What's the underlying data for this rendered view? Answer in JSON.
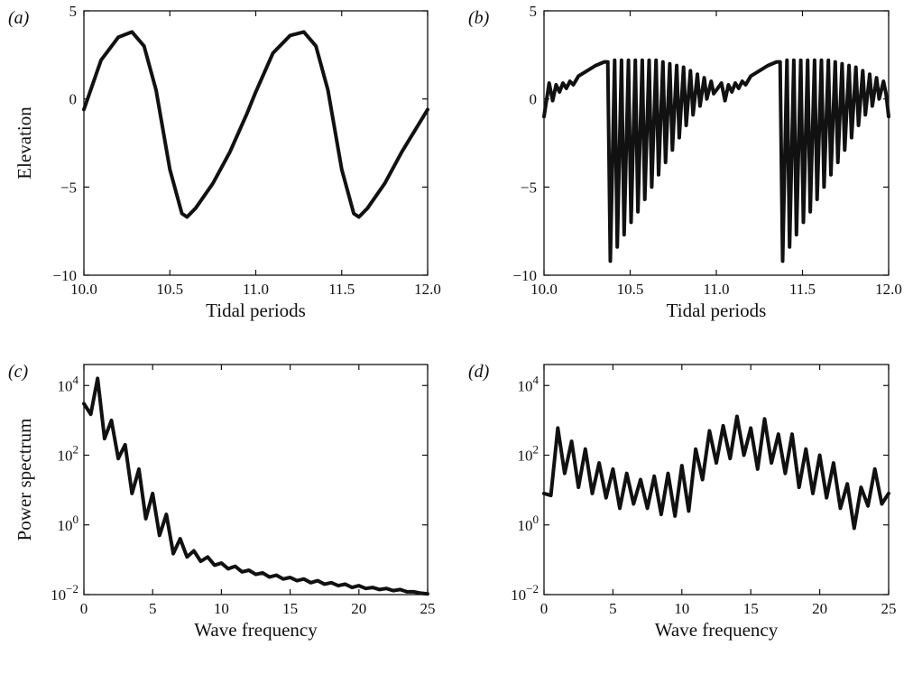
{
  "chart_data": [
    {
      "id": "a",
      "panel_label": "(a)",
      "type": "line",
      "xlabel": "Tidal periods",
      "ylabel": "Elevation",
      "xlim": [
        10.0,
        12.0
      ],
      "ylim": [
        -10,
        5
      ],
      "xticks": [
        "10.0",
        "10.5",
        "11.0",
        "11.5",
        "12.0"
      ],
      "yticks": [
        "5",
        "0",
        "−5",
        "−10"
      ],
      "series": [
        {
          "x": [
            10.0,
            10.1,
            10.2,
            10.28,
            10.35,
            10.42,
            10.5,
            10.57,
            10.6,
            10.65,
            10.75,
            10.85,
            10.95,
            11.0,
            11.1,
            11.2,
            11.28,
            11.35,
            11.42,
            11.5,
            11.57,
            11.6,
            11.65,
            11.75,
            11.85,
            11.95,
            12.0
          ],
          "y": [
            -0.6,
            2.2,
            3.5,
            3.8,
            3.0,
            0.5,
            -4.0,
            -6.5,
            -6.7,
            -6.2,
            -4.8,
            -3.0,
            -0.8,
            0.4,
            2.6,
            3.6,
            3.8,
            3.0,
            0.5,
            -4.0,
            -6.5,
            -6.7,
            -6.2,
            -4.8,
            -3.0,
            -1.4,
            -0.6
          ]
        }
      ]
    },
    {
      "id": "b",
      "panel_label": "(b)",
      "type": "line",
      "xlabel": "Tidal periods",
      "ylabel": "",
      "xlim": [
        10.0,
        12.0
      ],
      "ylim": [
        -10,
        5
      ],
      "xticks": [
        "10.0",
        "10.5",
        "11.0",
        "11.5",
        "12.0"
      ],
      "yticks": [
        "5",
        "0",
        "−5",
        "−10"
      ],
      "series": [
        {
          "x": [
            10.0,
            10.03,
            10.05,
            10.07,
            10.09,
            10.11,
            10.13,
            10.15,
            10.17,
            10.2,
            10.25,
            10.3,
            10.35,
            10.37,
            10.385,
            10.41,
            10.425,
            10.45,
            10.465,
            10.49,
            10.505,
            10.53,
            10.545,
            10.57,
            10.585,
            10.61,
            10.625,
            10.65,
            10.665,
            10.69,
            10.705,
            10.73,
            10.745,
            10.77,
            10.785,
            10.81,
            10.825,
            10.85,
            10.865,
            10.89,
            10.905,
            10.93,
            10.945,
            10.97,
            10.985,
            11.0,
            11.03,
            11.05,
            11.07,
            11.09,
            11.11,
            11.13,
            11.15,
            11.17,
            11.2,
            11.25,
            11.3,
            11.35,
            11.37,
            11.385,
            11.41,
            11.425,
            11.45,
            11.465,
            11.49,
            11.505,
            11.53,
            11.545,
            11.57,
            11.585,
            11.61,
            11.625,
            11.65,
            11.665,
            11.69,
            11.705,
            11.73,
            11.745,
            11.77,
            11.785,
            11.81,
            11.825,
            11.85,
            11.865,
            11.89,
            11.905,
            11.93,
            11.945,
            11.97,
            11.985,
            12.0
          ],
          "y": [
            -1.0,
            0.9,
            -0.1,
            0.8,
            0.4,
            0.9,
            0.6,
            1.0,
            0.8,
            1.3,
            1.6,
            1.9,
            2.1,
            2.1,
            -9.2,
            2.2,
            -8.4,
            2.2,
            -7.7,
            2.2,
            -7.0,
            2.2,
            -6.4,
            2.2,
            -5.7,
            2.2,
            -5.0,
            2.2,
            -4.3,
            2.1,
            -3.6,
            2.0,
            -2.9,
            1.9,
            -2.2,
            1.8,
            -1.5,
            1.6,
            -0.9,
            1.4,
            -0.4,
            1.2,
            0.0,
            1.0,
            0.3,
            0.5,
            0.9,
            -0.1,
            0.8,
            0.4,
            0.9,
            0.6,
            1.0,
            0.8,
            1.3,
            1.6,
            1.9,
            2.1,
            2.1,
            -9.2,
            2.2,
            -8.4,
            2.2,
            -7.7,
            2.2,
            -7.0,
            2.2,
            -6.4,
            2.2,
            -5.7,
            2.2,
            -5.0,
            2.2,
            -4.3,
            2.1,
            -3.6,
            2.0,
            -2.9,
            1.9,
            -2.2,
            1.8,
            -1.5,
            1.6,
            -0.9,
            1.4,
            -0.4,
            1.2,
            0.0,
            1.0,
            0.3,
            -1.0
          ]
        }
      ]
    },
    {
      "id": "c",
      "panel_label": "(c)",
      "type": "line",
      "xlabel": "Wave frequency",
      "ylabel": "Power spectrum",
      "yscale": "log",
      "xlim": [
        0,
        25
      ],
      "ylim": [
        0.01,
        40000
      ],
      "xticks": [
        "0",
        "5",
        "10",
        "15",
        "20",
        "25"
      ],
      "ytick_values": [
        0.01,
        1,
        100,
        10000
      ],
      "ytick_exponents": [
        "−2",
        "0",
        "2",
        "4"
      ],
      "series": [
        {
          "x": [
            0,
            0.5,
            1,
            1.5,
            2,
            2.5,
            3,
            3.5,
            4,
            4.5,
            5,
            5.5,
            6,
            6.5,
            7,
            7.5,
            8,
            8.5,
            9,
            9.5,
            10,
            10.5,
            11,
            11.5,
            12,
            12.5,
            13,
            13.5,
            14,
            14.5,
            15,
            15.5,
            16,
            16.5,
            17,
            17.5,
            18,
            18.5,
            19,
            19.5,
            20,
            20.5,
            21,
            21.5,
            22,
            22.5,
            23,
            23.5,
            24,
            24.5,
            25
          ],
          "y": [
            3000,
            1500,
            16000,
            300,
            1000,
            80,
            200,
            8,
            40,
            1.5,
            8,
            0.5,
            2,
            0.15,
            0.4,
            0.12,
            0.18,
            0.09,
            0.12,
            0.07,
            0.08,
            0.055,
            0.065,
            0.045,
            0.05,
            0.038,
            0.042,
            0.032,
            0.036,
            0.028,
            0.031,
            0.025,
            0.028,
            0.022,
            0.025,
            0.02,
            0.022,
            0.018,
            0.02,
            0.016,
            0.018,
            0.015,
            0.016,
            0.014,
            0.015,
            0.013,
            0.014,
            0.012,
            0.012,
            0.011,
            0.0105
          ]
        }
      ]
    },
    {
      "id": "d",
      "panel_label": "(d)",
      "type": "line",
      "xlabel": "Wave frequency",
      "ylabel": "",
      "yscale": "log",
      "xlim": [
        0,
        25
      ],
      "ylim": [
        0.01,
        40000
      ],
      "xticks": [
        "0",
        "5",
        "10",
        "15",
        "20",
        "25"
      ],
      "ytick_values": [
        0.01,
        1,
        100,
        10000
      ],
      "ytick_exponents": [
        "−2",
        "0",
        "2",
        "4"
      ],
      "series": [
        {
          "x": [
            0,
            0.5,
            1,
            1.5,
            2,
            2.5,
            3,
            3.5,
            4,
            4.5,
            5,
            5.5,
            6,
            6.5,
            7,
            7.5,
            8,
            8.5,
            9,
            9.5,
            10,
            10.5,
            11,
            11.5,
            12,
            12.5,
            13,
            13.5,
            14,
            14.5,
            15,
            15.5,
            16,
            16.5,
            17,
            17.5,
            18,
            18.5,
            19,
            19.5,
            20,
            20.5,
            21,
            21.5,
            22,
            22.5,
            23,
            23.5,
            24,
            24.5,
            25
          ],
          "y": [
            8,
            7,
            600,
            30,
            250,
            12,
            150,
            8,
            60,
            6,
            40,
            3,
            30,
            4,
            20,
            3,
            25,
            2,
            30,
            1.8,
            50,
            2.5,
            150,
            20,
            500,
            60,
            700,
            80,
            1300,
            100,
            600,
            40,
            1100,
            60,
            400,
            30,
            400,
            12,
            150,
            8,
            100,
            6,
            60,
            3,
            15,
            0.8,
            12,
            3.5,
            40,
            4,
            8
          ]
        }
      ]
    }
  ]
}
